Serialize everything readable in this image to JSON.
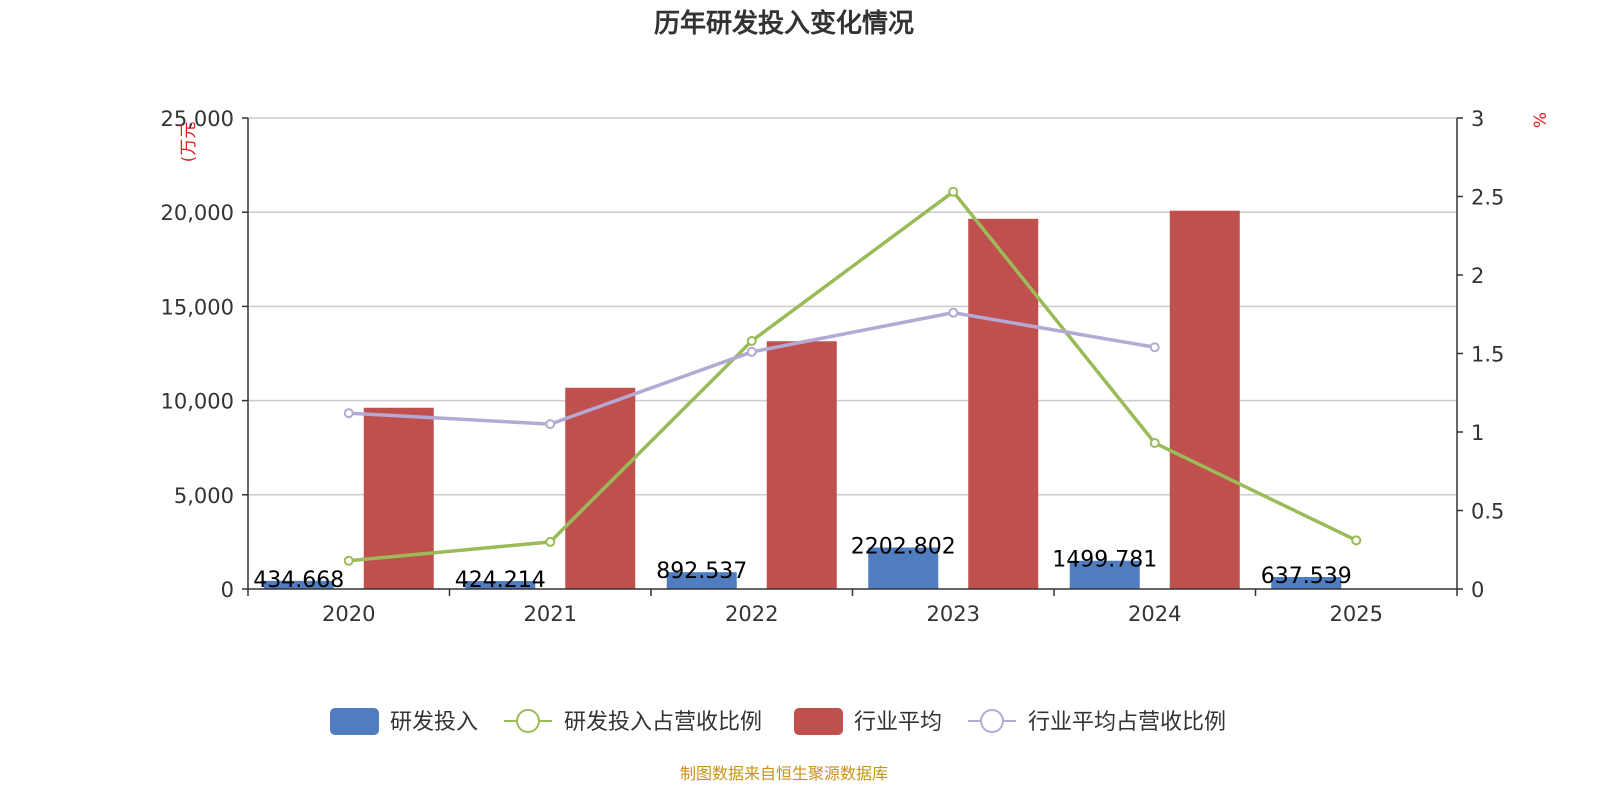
{
  "chart_data": {
    "type": "bar",
    "title": "历年研发投入变化情况",
    "categories": [
      "2020",
      "2021",
      "2022",
      "2023",
      "2024",
      "2025"
    ],
    "y_left": {
      "unit_label": "(万元",
      "ylim": [
        0,
        25000
      ],
      "ticks": [
        "0",
        "5,000",
        "10,000",
        "15,000",
        "20,000",
        "25,000"
      ],
      "tick_values": [
        0,
        5000,
        10000,
        15000,
        20000,
        25000
      ]
    },
    "y_right": {
      "unit_label": "%",
      "ylim": [
        0,
        3
      ],
      "ticks": [
        "0",
        "0.5",
        "1",
        "1.5",
        "2",
        "2.5",
        "3"
      ],
      "tick_values": [
        0,
        0.5,
        1,
        1.5,
        2,
        2.5,
        3
      ]
    },
    "series": [
      {
        "name": "研发投入",
        "type": "bar",
        "axis": "left",
        "color": "#4f7dbf",
        "values": [
          434.668,
          424.214,
          892.537,
          2202.802,
          1499.781,
          637.539
        ],
        "labels": [
          "434.668",
          "424.214",
          "892.537",
          "2202.802",
          "1499.781",
          "637.539"
        ]
      },
      {
        "name": "研发投入占营收比例",
        "type": "line",
        "axis": "right",
        "color": "#9bbb59",
        "values": [
          0.18,
          0.3,
          1.58,
          2.53,
          0.93,
          0.31
        ]
      },
      {
        "name": "行业平均",
        "type": "bar",
        "axis": "left",
        "color": "#c0504d",
        "values": [
          9620,
          10680,
          13150,
          19650,
          20080,
          null
        ]
      },
      {
        "name": "行业平均占营收比例",
        "type": "line",
        "axis": "right",
        "color": "#b3a9d3",
        "values": [
          1.12,
          1.05,
          1.51,
          1.76,
          1.54,
          null
        ]
      }
    ],
    "grid": true,
    "legend_position": "bottom"
  },
  "source_note": "制图数据来自恒生聚源数据库"
}
